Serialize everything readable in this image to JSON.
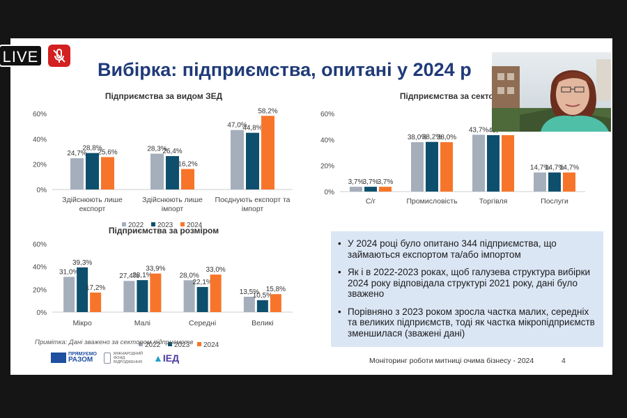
{
  "overlay": {
    "live_label": "LIVE",
    "mic_icon": "mic-off-icon"
  },
  "slide": {
    "title": "Вибірка: підприємства, опитані у 2024 р",
    "note": "Примітка: Дані зважено за сектором підприємств",
    "footer": "Моніторинг роботи митниці очима бізнесу - 2024",
    "page_number": "4",
    "logos": {
      "logo1_line1": "ПРЯМУЄМО",
      "logo1_line2": "РАЗОМ",
      "logo2_line1": "МІЖНАРОДНИЙ",
      "logo2_line2": "ФОНД",
      "logo2_line3": "ВІДРОДЖЕННЯ",
      "logo3": "ІЕД"
    },
    "bullets": [
      "У 2024 році було опитано 344 підприємства, що займаються експортом та/або імпортом",
      "Як і в 2022-2023 роках, щоб галузева структура вибірки 2024 року відповідала структурі 2021 року, дані було зважено",
      "Порівняно з 2023 роком зросла частка малих, середніх та великих підприємств, тоді як частка мікропідприємств зменшилася (зважені дані)"
    ],
    "colors": {
      "s2022": "#a5afbb",
      "s2023": "#0f4f6e",
      "s2024": "#f7752a",
      "title": "#1f3a78"
    }
  },
  "chart_data": [
    {
      "type": "bar",
      "title": "Підприємства за видом ЗЕД",
      "categories": [
        [
          "Здійснюють лише",
          "експорт"
        ],
        [
          "Здійснюють лише",
          "імпорт"
        ],
        [
          "Поєднують експорт та",
          "імпорт"
        ]
      ],
      "series": [
        {
          "name": "2022",
          "values": [
            24.7,
            28.3,
            47.0
          ],
          "labels": [
            "24,7%",
            "28,3%",
            "47,0%"
          ]
        },
        {
          "name": "2023",
          "values": [
            28.8,
            26.4,
            44.8
          ],
          "labels": [
            "28,8%",
            "26,4%",
            "44,8%"
          ]
        },
        {
          "name": "2024",
          "values": [
            25.6,
            16.2,
            58.2
          ],
          "labels": [
            "25,6%",
            "16,2%",
            "58,2%"
          ]
        }
      ],
      "yticks": [
        "0%",
        "20%",
        "40%",
        "60%"
      ],
      "ylim": [
        0,
        60
      ],
      "legend": "bottom"
    },
    {
      "type": "bar",
      "title": "Підприємства за сектор",
      "categories": [
        [
          "С/г"
        ],
        [
          "Промисловість"
        ],
        [
          "Торгівля"
        ],
        [
          "Послуги"
        ]
      ],
      "series": [
        {
          "name": "2022",
          "values": [
            3.7,
            38.0,
            43.7,
            14.7
          ],
          "labels": [
            "3,7%",
            "38,0%",
            "43,7%",
            "14,7%"
          ]
        },
        {
          "name": "2023",
          "values": [
            3.7,
            38.2,
            43.4,
            14.7
          ],
          "labels": [
            "3,7%",
            "38,2%",
            "43,",
            "14,7%"
          ]
        },
        {
          "name": "2024",
          "values": [
            3.7,
            38.0,
            43.4,
            14.7
          ],
          "labels": [
            "3,7%",
            "38,0%",
            "",
            "14,7%"
          ]
        }
      ],
      "yticks": [
        "0%",
        "20%",
        "40%",
        "60%"
      ],
      "ylim": [
        0,
        60
      ],
      "legend": "bottom"
    },
    {
      "type": "bar",
      "title": "Підприємства за розміром",
      "categories": [
        [
          "Мікро"
        ],
        [
          "Малі"
        ],
        [
          "Середні"
        ],
        [
          "Великі"
        ]
      ],
      "series": [
        {
          "name": "2022",
          "values": [
            31.0,
            27.4,
            28.0,
            13.5
          ],
          "labels": [
            "31,0%",
            "27,4%",
            "28,0%",
            "13,5%"
          ]
        },
        {
          "name": "2023",
          "values": [
            39.3,
            28.1,
            22.1,
            10.5
          ],
          "labels": [
            "39,3%",
            "28,1%",
            "22,1%",
            "10,5%"
          ]
        },
        {
          "name": "2024",
          "values": [
            17.2,
            33.9,
            33.0,
            15.8
          ],
          "labels": [
            "17,2%",
            "33,9%",
            "33,0%",
            "15,8%"
          ]
        }
      ],
      "yticks": [
        "0%",
        "20%",
        "40%",
        "60%"
      ],
      "ylim": [
        0,
        60
      ],
      "legend": "bottom"
    }
  ]
}
